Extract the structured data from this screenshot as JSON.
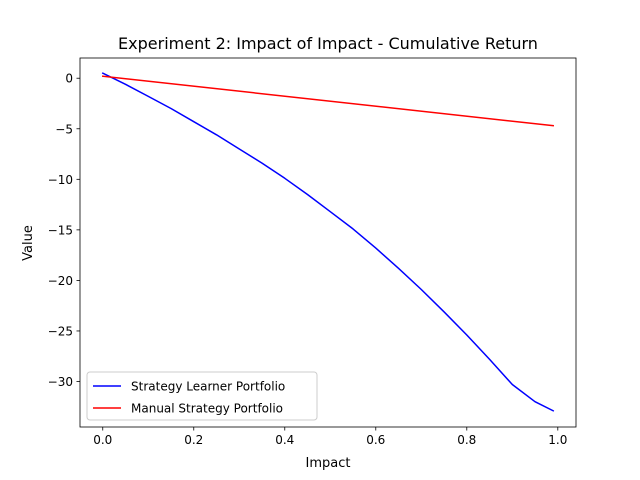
{
  "chart_data": {
    "type": "line",
    "title": "Experiment 2: Impact of Impact - Cumulative Return",
    "xlabel": "Impact",
    "ylabel": "Value",
    "xlim": [
      -0.05,
      1.04
    ],
    "ylim": [
      -34.5,
      2.0
    ],
    "grid": false,
    "legend_position": "lower-left",
    "x_ticks": [
      0.0,
      0.2,
      0.4,
      0.6,
      0.8,
      1.0
    ],
    "x_tick_labels": [
      "0.0",
      "0.2",
      "0.4",
      "0.6",
      "0.8",
      "1.0"
    ],
    "y_ticks": [
      0,
      -5,
      -10,
      -15,
      -20,
      -25,
      -30
    ],
    "y_tick_labels": [
      "0",
      "−5",
      "−10",
      "−15",
      "−20",
      "−25",
      "−30"
    ],
    "series": [
      {
        "name": "Strategy Learner Portfolio",
        "color": "#0000ff",
        "x": [
          0.0,
          0.05,
          0.1,
          0.15,
          0.2,
          0.25,
          0.3,
          0.35,
          0.4,
          0.45,
          0.5,
          0.55,
          0.6,
          0.65,
          0.7,
          0.75,
          0.8,
          0.85,
          0.9,
          0.95,
          0.99
        ],
        "y": [
          0.5,
          -0.6,
          -1.8,
          -3.0,
          -4.3,
          -5.6,
          -7.0,
          -8.4,
          -9.9,
          -11.5,
          -13.2,
          -14.9,
          -16.8,
          -18.8,
          -20.9,
          -23.1,
          -25.4,
          -27.8,
          -30.3,
          -32.0,
          -32.9
        ]
      },
      {
        "name": "Manual Strategy Portfolio",
        "color": "#ff0000",
        "x": [
          0.0,
          0.99
        ],
        "y": [
          0.2,
          -4.7
        ]
      }
    ]
  }
}
